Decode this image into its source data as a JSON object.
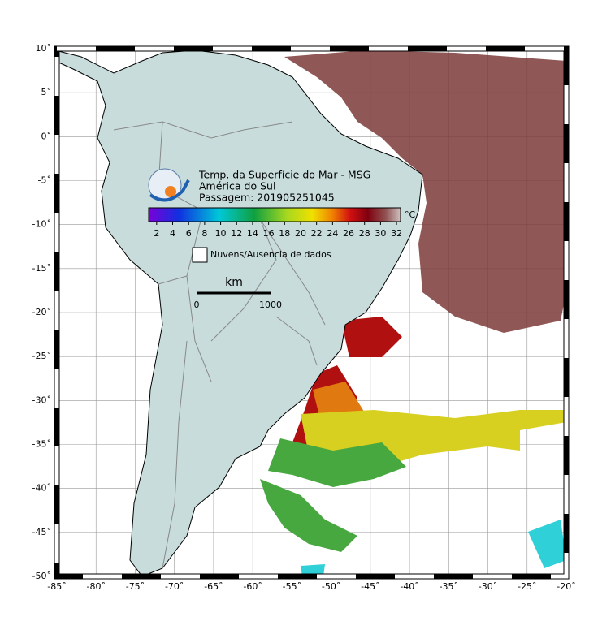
{
  "map": {
    "title": [
      "Temp. da Superfície do Mar - MSG",
      "América do Sul",
      "Passagem: 201905251045"
    ],
    "lon_range": [
      -85,
      -20
    ],
    "lat_range": [
      -50,
      10
    ],
    "lon_ticks": [
      {
        "value": -85,
        "label": "-85˚"
      },
      {
        "value": -80,
        "label": "-80˚"
      },
      {
        "value": -75,
        "label": "-75˚"
      },
      {
        "value": -70,
        "label": "-70˚"
      },
      {
        "value": -65,
        "label": "-65˚"
      },
      {
        "value": -60,
        "label": "-60˚"
      },
      {
        "value": -55,
        "label": "-55˚"
      },
      {
        "value": -50,
        "label": "-50˚"
      },
      {
        "value": -45,
        "label": "-45˚"
      },
      {
        "value": -40,
        "label": "-40˚"
      },
      {
        "value": -35,
        "label": "-35˚"
      },
      {
        "value": -30,
        "label": "-30˚"
      },
      {
        "value": -25,
        "label": "-25˚"
      },
      {
        "value": -20,
        "label": "-20˚"
      }
    ],
    "lat_ticks": [
      {
        "value": 10,
        "label": "10˚"
      },
      {
        "value": 5,
        "label": "5˚"
      },
      {
        "value": 0,
        "label": "0˚"
      },
      {
        "value": -5,
        "label": "-5˚"
      },
      {
        "value": -10,
        "label": "-10˚"
      },
      {
        "value": -15,
        "label": "-15˚"
      },
      {
        "value": -20,
        "label": "-20˚"
      },
      {
        "value": -25,
        "label": "-25˚"
      },
      {
        "value": -30,
        "label": "-30˚"
      },
      {
        "value": -35,
        "label": "-35˚"
      },
      {
        "value": -40,
        "label": "-40˚"
      },
      {
        "value": -45,
        "label": "-45˚"
      },
      {
        "value": -50,
        "label": "-50˚"
      }
    ],
    "colorbar": {
      "range": [
        1,
        32.5
      ],
      "ticks": [
        2,
        4,
        6,
        8,
        10,
        12,
        14,
        16,
        18,
        20,
        22,
        24,
        26,
        28,
        30,
        32
      ],
      "unit": "°C"
    },
    "legend": "Nuvens/Ausencia de dados",
    "scale_bar": {
      "unit": "km",
      "labels": [
        "0",
        "1000"
      ]
    }
  }
}
